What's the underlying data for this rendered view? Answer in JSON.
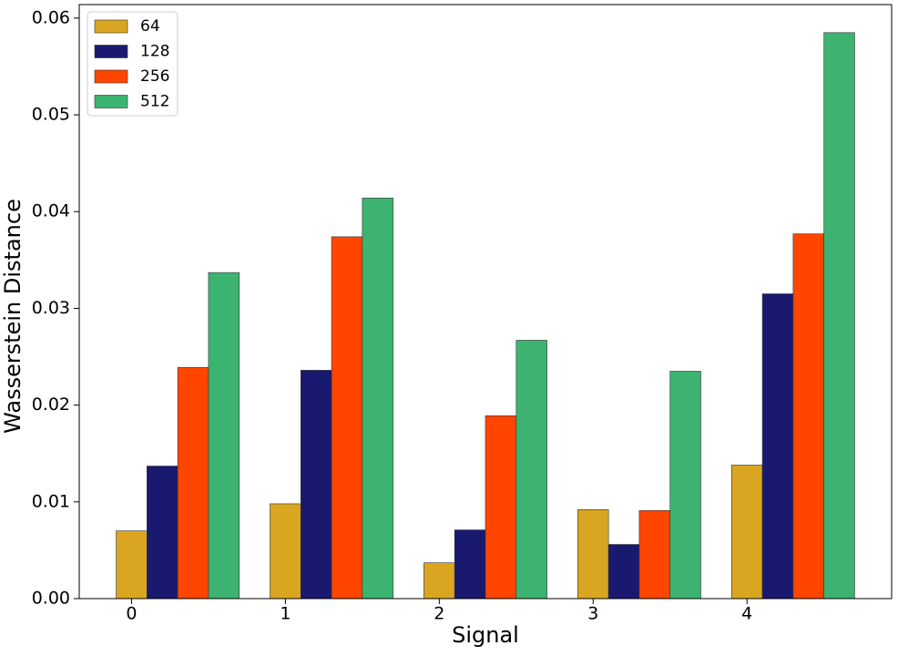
{
  "chart_data": {
    "type": "bar",
    "xlabel": "Signal",
    "ylabel": "Wasserstein Distance",
    "x": [
      0,
      1,
      2,
      3,
      4
    ],
    "series": [
      {
        "name": "64",
        "color": "#DAA520",
        "values": [
          0.007,
          0.0098,
          0.0037,
          0.0092,
          0.0138
        ]
      },
      {
        "name": "128",
        "color": "#191970",
        "values": [
          0.0137,
          0.0236,
          0.0071,
          0.0056,
          0.0315
        ]
      },
      {
        "name": "256",
        "color": "#FF4500",
        "values": [
          0.0239,
          0.0374,
          0.0189,
          0.0091,
          0.0377
        ]
      },
      {
        "name": "512",
        "color": "#3CB371",
        "values": [
          0.0337,
          0.0414,
          0.0267,
          0.0235,
          0.0585
        ]
      }
    ],
    "xlim": [
      -0.34,
      4.94
    ],
    "xticks": [
      0,
      1,
      2,
      3,
      4
    ],
    "ylim": [
      0,
      0.0614
    ],
    "yticks": [
      {
        "value": 0,
        "label": "0.00"
      },
      {
        "value": 0.01,
        "label": "0.01"
      },
      {
        "value": 0.02,
        "label": "0.02"
      },
      {
        "value": 0.03,
        "label": "0.03"
      },
      {
        "value": 0.04,
        "label": "0.04"
      },
      {
        "value": 0.05,
        "label": "0.05"
      },
      {
        "value": 0.06,
        "label": "0.06"
      }
    ],
    "legend": "upper left"
  }
}
